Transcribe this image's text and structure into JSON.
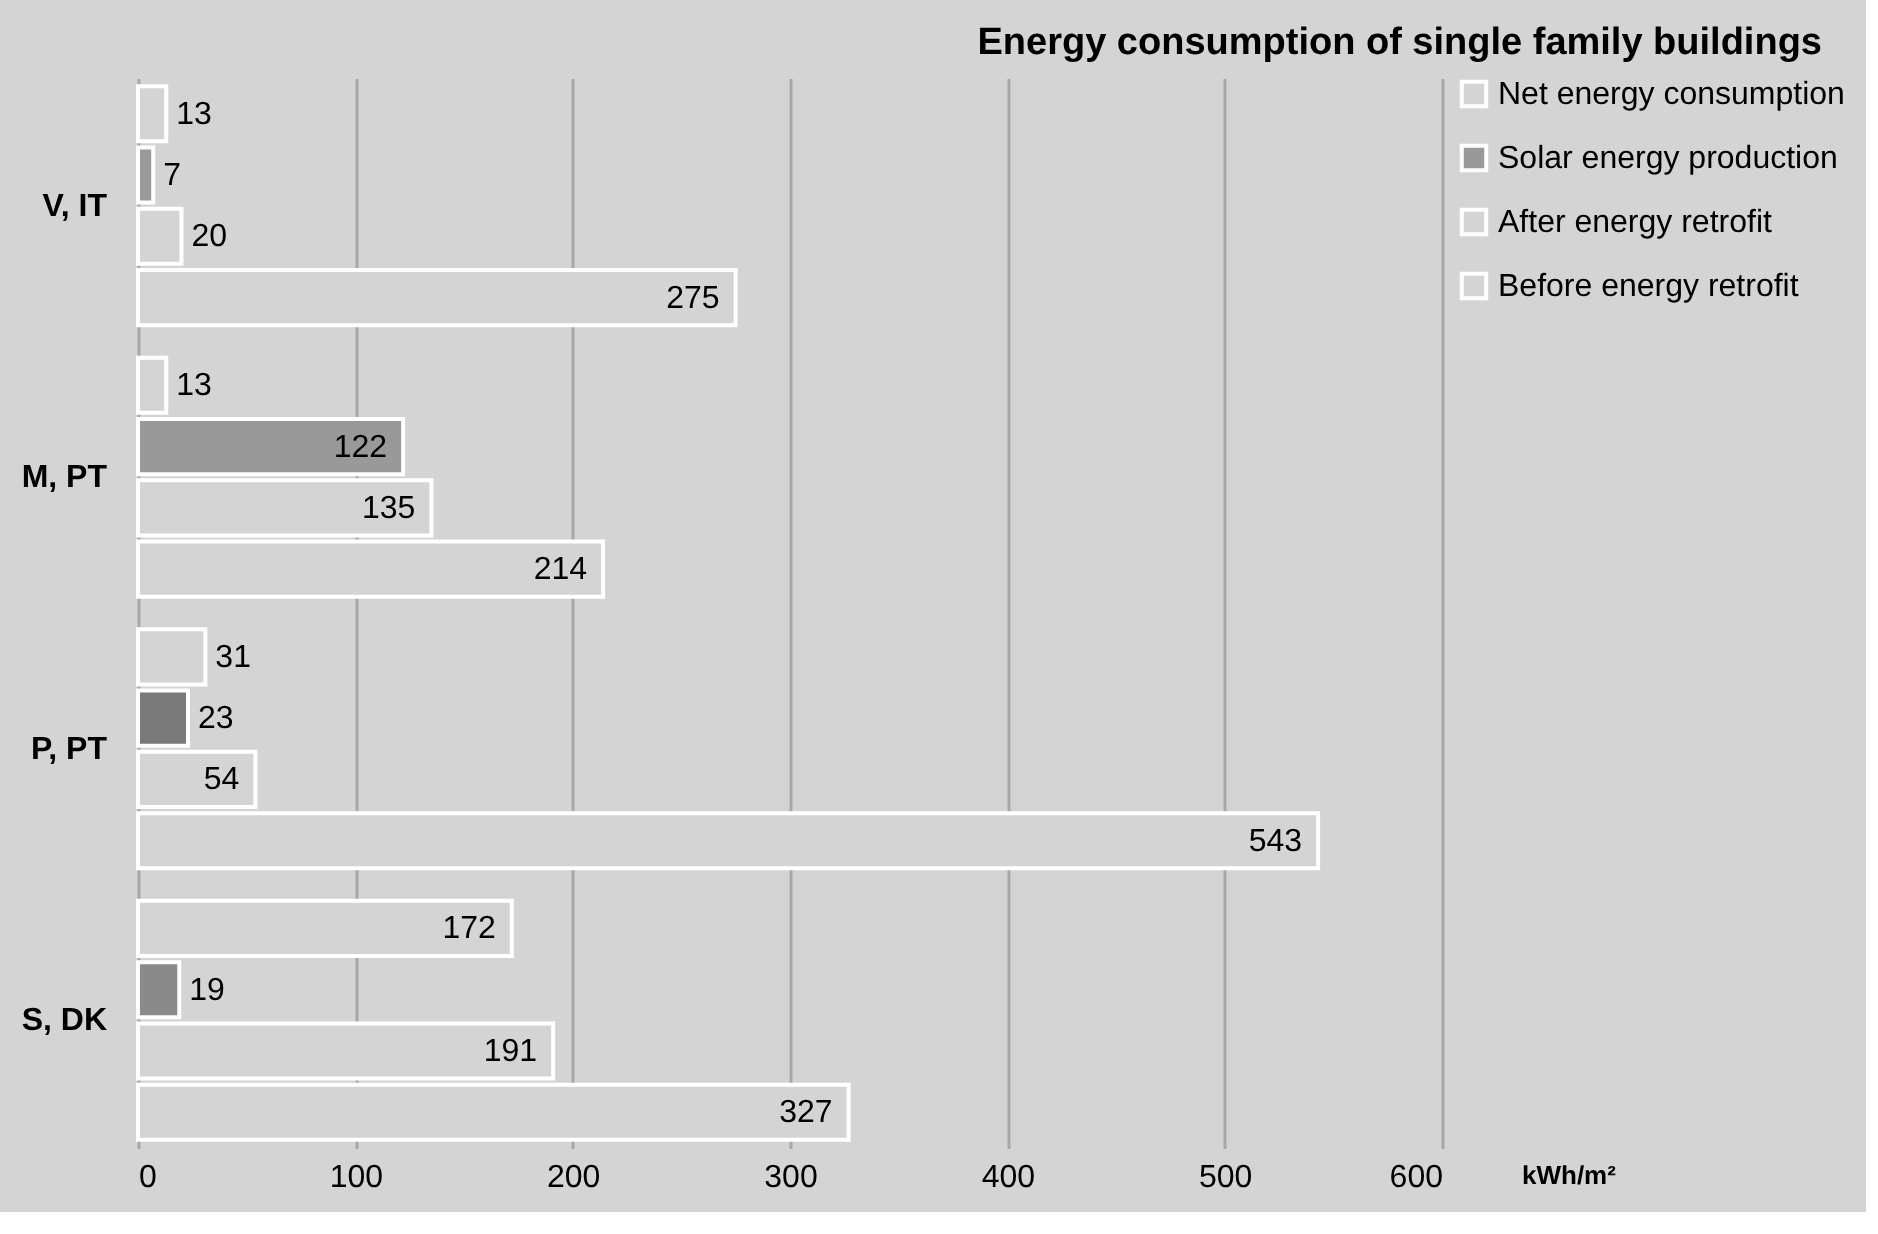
{
  "chart_data": {
    "type": "bar",
    "orientation": "horizontal",
    "title": "Energy consumption of single family buildings",
    "xlabel": "kWh/m²",
    "categories": [
      "V, IT",
      "M, PT",
      "P, PT",
      "S, DK"
    ],
    "series": [
      {
        "name": "Net energy consumption",
        "color": "#d4d4d4",
        "values": [
          13,
          13,
          31,
          172
        ]
      },
      {
        "name": "Solar energy production",
        "color": "#999999",
        "colors": [
          "#9a9a9a",
          "#999999",
          "#7a7a7a",
          "#8a8a8a"
        ],
        "values": [
          7,
          122,
          23,
          19
        ]
      },
      {
        "name": "After energy retrofit",
        "color": "#d4d4d4",
        "values": [
          20,
          135,
          54,
          191
        ]
      },
      {
        "name": "Before energy retrofit",
        "color": "#d4d4d4",
        "values": [
          275,
          214,
          543,
          327
        ]
      }
    ],
    "xlim": [
      0,
      600
    ],
    "xticks": [
      0,
      100,
      200,
      300,
      400,
      500,
      600
    ],
    "grid": "x",
    "legend": "top right",
    "data_labels": true
  }
}
